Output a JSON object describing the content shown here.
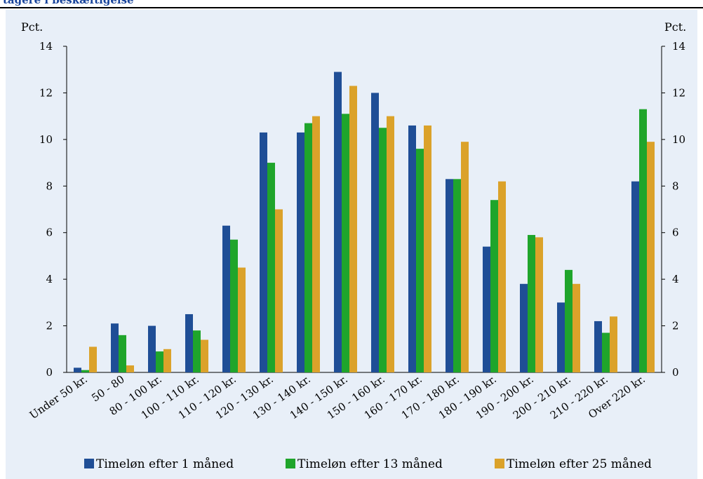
{
  "header": {
    "title": "tagere i beskæftigelse"
  },
  "chart_data": {
    "type": "bar",
    "title": "",
    "ylabel_left": "Pct.",
    "ylabel_right": "Pct.",
    "ylim": [
      0,
      14
    ],
    "yticks": [
      0,
      2,
      4,
      6,
      8,
      10,
      12,
      14
    ],
    "grid": false,
    "legend_position": "bottom",
    "categories": [
      "Under 50 kr.",
      "50 - 80",
      "80 - 100 kr.",
      "100 - 110 kr.",
      "110 - 120 kr.",
      "120 - 130 kr.",
      "130 - 140 kr.",
      "140 - 150 kr.",
      "150 - 160 kr.",
      "160 - 170 kr.",
      "170 - 180 kr.",
      "180 - 190 kr.",
      "190 - 200 kr.",
      "200 - 210 kr.",
      "210 - 220 kr.",
      "Over 220 kr."
    ],
    "series": [
      {
        "name": "Timeløn efter 1 måned",
        "color": "#1f4e96",
        "values": [
          0.2,
          2.1,
          2.0,
          2.5,
          6.3,
          10.3,
          10.3,
          12.9,
          12.0,
          10.6,
          8.3,
          5.4,
          3.8,
          3.0,
          2.2,
          8.2
        ]
      },
      {
        "name": "Timeløn efter 13 måned",
        "color": "#1fa52b",
        "values": [
          0.1,
          1.6,
          0.9,
          1.8,
          5.7,
          9.0,
          10.7,
          11.1,
          10.5,
          9.6,
          8.3,
          7.4,
          5.9,
          4.4,
          1.7,
          11.3
        ]
      },
      {
        "name": "Timeløn efter 25 måned",
        "color": "#dba22a",
        "values": [
          1.1,
          0.3,
          1.0,
          1.4,
          4.5,
          7.0,
          11.0,
          12.3,
          11.0,
          10.6,
          9.9,
          8.2,
          5.8,
          3.8,
          2.4,
          9.9
        ]
      }
    ]
  }
}
